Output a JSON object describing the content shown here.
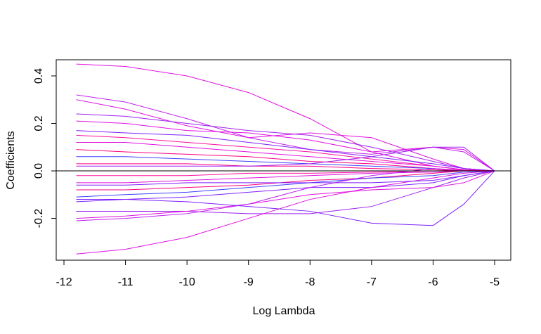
{
  "chart_data": {
    "type": "line",
    "x_label": "Log Lambda",
    "y_label": "Coefficients",
    "x": [
      -11.8,
      -11,
      -10,
      -9,
      -8,
      -7,
      -6,
      -5.5,
      -5
    ],
    "xlim": [
      -12.126,
      -4.737
    ],
    "ylim": [
      -0.376,
      0.468
    ],
    "xticks": [
      -12,
      -11,
      -10,
      -9,
      -8,
      -7,
      -6,
      -5
    ],
    "yticks": [
      {
        "value": -0.2,
        "label": "-0.2"
      },
      {
        "value": 0,
        "label": "0.0"
      },
      {
        "value": 0.2,
        "label": "0.2"
      },
      {
        "value": 0.4,
        "label": "0.4"
      }
    ],
    "hline": 0,
    "hline_color": "#000000",
    "series": [
      {
        "color": "#e010e0",
        "values": [
          0.45,
          0.44,
          0.4,
          0.33,
          0.22,
          0.08,
          0.02,
          0.005,
          0
        ]
      },
      {
        "color": "#c020f0",
        "values": [
          0.32,
          0.29,
          0.22,
          0.14,
          0.09,
          0.07,
          0.1,
          0.08,
          0
        ]
      },
      {
        "color": "#e010e0",
        "values": [
          0.3,
          0.26,
          0.19,
          0.14,
          0.16,
          0.14,
          0.05,
          0.01,
          0
        ]
      },
      {
        "color": "#a020f0",
        "values": [
          0.24,
          0.23,
          0.2,
          0.17,
          0.15,
          0.1,
          0.04,
          0.01,
          0
        ]
      },
      {
        "color": "#e010e0",
        "values": [
          0.21,
          0.2,
          0.17,
          0.16,
          0.13,
          0.08,
          0.1,
          0.09,
          0
        ]
      },
      {
        "color": "#8020ff",
        "values": [
          0.17,
          0.16,
          0.15,
          0.12,
          0.09,
          0.06,
          0.03,
          0.01,
          0
        ]
      },
      {
        "color": "#ff10a0",
        "values": [
          0.15,
          0.14,
          0.12,
          0.1,
          0.08,
          0.05,
          0.02,
          0.005,
          0
        ]
      },
      {
        "color": "#e010e0",
        "values": [
          0.12,
          0.12,
          0.1,
          0.08,
          0.06,
          0.04,
          0.02,
          0.005,
          0
        ]
      },
      {
        "color": "#ff0080",
        "values": [
          0.09,
          0.08,
          0.07,
          0.06,
          0.04,
          0.03,
          0.01,
          0.003,
          0
        ]
      },
      {
        "color": "#4040ff",
        "values": [
          0.06,
          0.06,
          0.05,
          0.04,
          0.03,
          0.02,
          0.01,
          0,
          0
        ]
      },
      {
        "color": "#ff0080",
        "values": [
          0.03,
          0.03,
          0.03,
          0.02,
          0.02,
          0.01,
          0.005,
          0,
          0
        ]
      },
      {
        "color": "#ff10a0",
        "values": [
          -0.02,
          -0.02,
          -0.02,
          -0.01,
          -0.01,
          -0.005,
          0,
          0,
          0
        ]
      },
      {
        "color": "#e010e0",
        "values": [
          -0.05,
          -0.05,
          -0.04,
          -0.03,
          -0.02,
          -0.01,
          -0.005,
          0,
          0
        ]
      },
      {
        "color": "#ff0080",
        "values": [
          -0.08,
          -0.08,
          -0.07,
          -0.06,
          -0.04,
          -0.03,
          -0.01,
          0,
          0
        ]
      },
      {
        "color": "#4040ff",
        "values": [
          -0.11,
          -0.1,
          -0.09,
          -0.07,
          -0.05,
          -0.03,
          -0.02,
          -0.005,
          0
        ]
      },
      {
        "color": "#8020ff",
        "values": [
          -0.13,
          -0.12,
          -0.11,
          -0.09,
          -0.07,
          -0.07,
          -0.05,
          -0.02,
          0
        ]
      },
      {
        "color": "#a020f0",
        "values": [
          -0.17,
          -0.17,
          -0.17,
          -0.18,
          -0.18,
          -0.15,
          -0.07,
          -0.03,
          0
        ]
      },
      {
        "color": "#e010e0",
        "values": [
          -0.2,
          -0.19,
          -0.17,
          -0.14,
          -0.1,
          -0.08,
          -0.07,
          -0.05,
          0
        ]
      },
      {
        "color": "#c020f0",
        "values": [
          -0.21,
          -0.2,
          -0.18,
          -0.14,
          -0.07,
          -0.02,
          0.01,
          0.0,
          0
        ]
      },
      {
        "color": "#e010e0",
        "values": [
          -0.35,
          -0.33,
          -0.28,
          -0.2,
          -0.12,
          -0.07,
          -0.03,
          -0.01,
          0
        ]
      },
      {
        "color": "#8020ff",
        "values": [
          -0.12,
          -0.12,
          -0.13,
          -0.15,
          -0.17,
          -0.22,
          -0.23,
          -0.14,
          0
        ]
      },
      {
        "color": "#a020f0",
        "values": [
          0.02,
          0.02,
          0.02,
          0.02,
          0.03,
          0.06,
          0.1,
          0.1,
          0
        ]
      },
      {
        "color": "#8020ff",
        "values": [
          -0.06,
          -0.06,
          -0.05,
          -0.05,
          -0.05,
          -0.05,
          -0.04,
          -0.02,
          0
        ]
      }
    ]
  }
}
